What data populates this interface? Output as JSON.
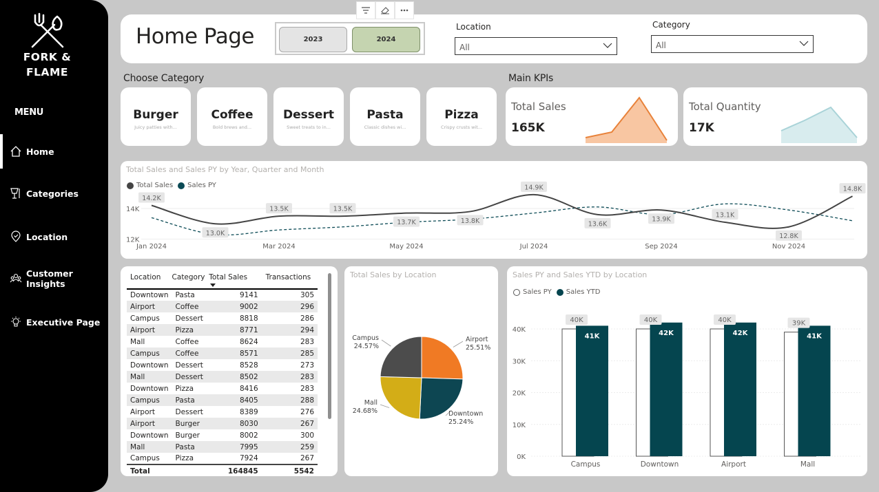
{
  "brand": {
    "line1": "FORK &",
    "line2": "FLAME"
  },
  "menu_title": "MENU",
  "nav": [
    {
      "label": "Home",
      "icon": "home-icon",
      "active": true
    },
    {
      "label": "Categories",
      "icon": "utensils-icon"
    },
    {
      "label": "Location",
      "icon": "map-pin-icon"
    },
    {
      "label": "Customer Insights",
      "icon": "people-icon"
    },
    {
      "label": "Executive Page",
      "icon": "lightbulb-icon"
    }
  ],
  "header": {
    "title": "Home Page",
    "years": [
      "2023",
      "2024"
    ],
    "selected_year": "2024",
    "location_label": "Location",
    "location_value": "All",
    "category_label": "Category",
    "category_value": "All"
  },
  "choose_category": {
    "title": "Choose Category",
    "items": [
      {
        "name": "Burger",
        "desc": "Juicy patties with..."
      },
      {
        "name": "Coffee",
        "desc": "Bold brews and..."
      },
      {
        "name": "Dessert",
        "desc": "Sweet treats to in..."
      },
      {
        "name": "Pasta",
        "desc": "Classic dishes wi..."
      },
      {
        "name": "Pizza",
        "desc": "Crispy crusts wit..."
      }
    ]
  },
  "kpis": {
    "title": "Main KPIs",
    "total_sales": {
      "label": "Total Sales",
      "value": "165K",
      "color": "#e8823a",
      "fill": "#f8c6a2"
    },
    "total_quantity": {
      "label": "Total Quantity",
      "value": "17K",
      "color": "#a9d3d8",
      "fill": "#d8ecee"
    }
  },
  "colors": {
    "total_sales": "#444444",
    "sales_py": "#0b4a55",
    "pie_airport": "#f07a24",
    "pie_downtown": "#0d4652",
    "pie_mall": "#d3ad17",
    "pie_campus": "#4c4c4c",
    "bar_ytd": "#05454f"
  },
  "line_chart": {
    "title": "Total Sales and Sales PY by Year, Quarter and Month",
    "legend": [
      "Total Sales",
      "Sales PY"
    ],
    "y_ticks": [
      "14K",
      "12K"
    ],
    "x_ticks": [
      "Jan 2024",
      "Mar 2024",
      "May 2024",
      "Jul 2024",
      "Sep 2024",
      "Nov 2024"
    ]
  },
  "table": {
    "columns": [
      "Location",
      "Category",
      "Total Sales",
      "Transactions"
    ],
    "rows": [
      [
        "Downtown",
        "Pasta",
        "9141",
        "305"
      ],
      [
        "Airport",
        "Coffee",
        "9002",
        "296"
      ],
      [
        "Campus",
        "Dessert",
        "8818",
        "286"
      ],
      [
        "Airport",
        "Pizza",
        "8771",
        "294"
      ],
      [
        "Mall",
        "Coffee",
        "8624",
        "283"
      ],
      [
        "Campus",
        "Coffee",
        "8571",
        "285"
      ],
      [
        "Downtown",
        "Dessert",
        "8528",
        "273"
      ],
      [
        "Mall",
        "Dessert",
        "8502",
        "283"
      ],
      [
        "Downtown",
        "Pizza",
        "8416",
        "283"
      ],
      [
        "Campus",
        "Pasta",
        "8405",
        "288"
      ],
      [
        "Airport",
        "Dessert",
        "8389",
        "276"
      ],
      [
        "Airport",
        "Burger",
        "8030",
        "267"
      ],
      [
        "Downtown",
        "Burger",
        "8002",
        "300"
      ],
      [
        "Mall",
        "Pasta",
        "7995",
        "259"
      ],
      [
        "Campus",
        "Pizza",
        "7924",
        "267"
      ]
    ],
    "total": [
      "Total",
      "",
      "164845",
      "5542"
    ]
  },
  "pie_title": "Total Sales by Location",
  "bar_chart": {
    "title": "Sales PY and Sales YTD by Location",
    "legend": [
      "Sales PY",
      "Sales YTD"
    ],
    "y_ticks": [
      "40K",
      "30K",
      "20K",
      "10K",
      "0K"
    ]
  },
  "chart_data": [
    {
      "type": "line",
      "title": "Total Sales and Sales PY by Year, Quarter and Month",
      "x": [
        "Jan 2024",
        "Feb 2024",
        "Mar 2024",
        "Apr 2024",
        "May 2024",
        "Jun 2024",
        "Jul 2024",
        "Aug 2024",
        "Sep 2024",
        "Oct 2024",
        "Nov 2024",
        "Dec 2024"
      ],
      "series": [
        {
          "name": "Total Sales",
          "values": [
            14200,
            13000,
            13500,
            13500,
            13700,
            13800,
            14900,
            13600,
            13900,
            13100,
            12800,
            14800
          ]
        },
        {
          "name": "Sales PY",
          "values": [
            13400,
            12300,
            12600,
            12800,
            13100,
            13300,
            13700,
            14100,
            13600,
            14300,
            13900,
            13200
          ]
        }
      ],
      "labels": [
        {
          "x": "Jan 2024",
          "text": "14.2K"
        },
        {
          "x": "Feb 2024",
          "text": "13.0K"
        },
        {
          "x": "Mar 2024",
          "text": "13.5K"
        },
        {
          "x": "Apr 2024",
          "text": "13.5K"
        },
        {
          "x": "May 2024",
          "text": "13.7K"
        },
        {
          "x": "Jun 2024",
          "text": "13.8K"
        },
        {
          "x": "Jul 2024",
          "text": "14.9K"
        },
        {
          "x": "Aug 2024",
          "text": "13.6K"
        },
        {
          "x": "Sep 2024",
          "text": "13.9K"
        },
        {
          "x": "Oct 2024",
          "text": "13.1K"
        },
        {
          "x": "Nov 2024",
          "text": "12.8K"
        },
        {
          "x": "Dec 2024",
          "text": "14.8K"
        }
      ],
      "ylim": [
        11800,
        15300
      ]
    },
    {
      "type": "pie",
      "title": "Total Sales by Location",
      "slices": [
        {
          "label": "Airport",
          "value": 25.51,
          "text": "25.51%"
        },
        {
          "label": "Downtown",
          "value": 25.24,
          "text": "25.24%"
        },
        {
          "label": "Mall",
          "value": 24.68,
          "text": "24.68%"
        },
        {
          "label": "Campus",
          "value": 24.57,
          "text": "24.57%"
        }
      ]
    },
    {
      "type": "bar",
      "title": "Sales PY and Sales YTD by Location",
      "categories": [
        "Campus",
        "Downtown",
        "Airport",
        "Mall"
      ],
      "series": [
        {
          "name": "Sales PY",
          "values": [
            40000,
            40000,
            40000,
            39000
          ],
          "labels": [
            "40K",
            "40K",
            "40K",
            "39K"
          ]
        },
        {
          "name": "Sales YTD",
          "values": [
            41000,
            42000,
            42000,
            41000
          ],
          "labels": [
            "41K",
            "42K",
            "42K",
            "41K"
          ]
        }
      ],
      "ylim": [
        0,
        45000
      ]
    }
  ]
}
